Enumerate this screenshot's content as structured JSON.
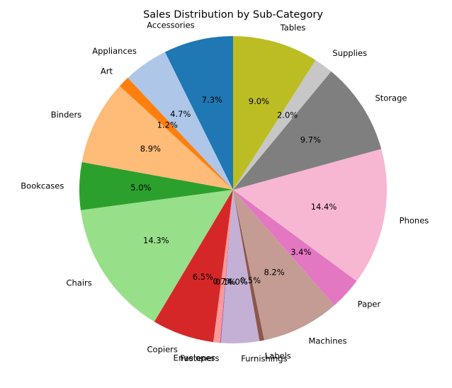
{
  "chart_data": {
    "type": "pie",
    "title": "Sales Distribution by Sub-Category",
    "start_angle_deg": 90,
    "direction": "counterclockwise",
    "pct_format": "1 decimal",
    "categories": [
      "Accessories",
      "Appliances",
      "Art",
      "Binders",
      "Bookcases",
      "Chairs",
      "Copiers",
      "Envelopes",
      "Fasteners",
      "Furnishings",
      "Labels",
      "Machines",
      "Paper",
      "Phones",
      "Storage",
      "Supplies",
      "Tables"
    ],
    "values": [
      7.3,
      4.7,
      1.2,
      8.9,
      5.0,
      14.3,
      6.5,
      0.7,
      0.1,
      4.0,
      0.5,
      8.2,
      3.4,
      14.4,
      9.7,
      2.0,
      9.0
    ],
    "colors": [
      "#1f77b4",
      "#aec7e8",
      "#ff7f0e",
      "#ffbb78",
      "#2ca02c",
      "#98df8a",
      "#d62728",
      "#ff9896",
      "#9467bd",
      "#c5b0d5",
      "#8c564b",
      "#c49c94",
      "#e377c2",
      "#f7b6d2",
      "#7f7f7f",
      "#c7c7c7",
      "#bcbd22"
    ]
  }
}
